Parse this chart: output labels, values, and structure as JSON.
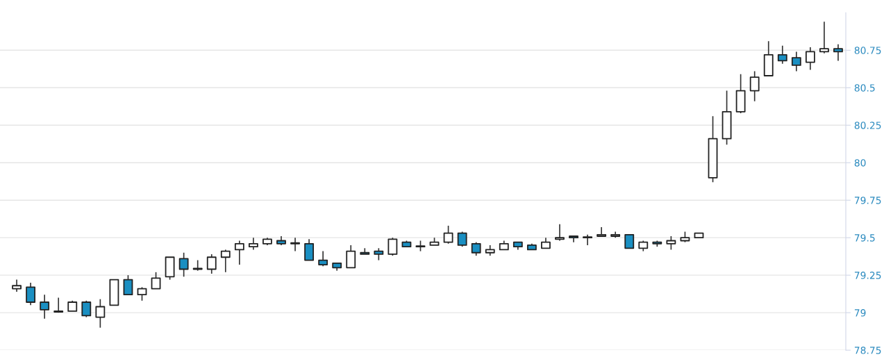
{
  "chart_data": {
    "type": "candlestick",
    "categories": [
      null,
      null,
      null,
      null,
      null,
      null,
      null,
      null,
      null,
      null,
      null,
      null,
      null,
      null,
      null,
      null,
      null,
      null,
      null,
      null,
      null,
      null,
      null,
      null,
      null,
      null,
      null,
      null,
      null,
      null,
      null,
      null,
      null,
      null,
      null,
      null,
      null,
      null,
      null,
      null,
      null,
      null,
      null,
      null,
      null,
      null,
      null,
      null,
      null,
      null,
      null,
      null,
      null,
      null,
      null,
      null,
      null,
      null,
      null,
      null
    ],
    "ohlc": [
      [
        79.16,
        79.22,
        79.14,
        79.18
      ],
      [
        79.17,
        79.2,
        79.05,
        79.07
      ],
      [
        79.07,
        79.12,
        78.96,
        79.02
      ],
      [
        79.01,
        79.1,
        79.0,
        79.005
      ],
      [
        79.01,
        79.08,
        79.01,
        79.07
      ],
      [
        79.07,
        79.08,
        78.97,
        78.98
      ],
      [
        78.97,
        79.09,
        78.9,
        79.04
      ],
      [
        79.05,
        79.22,
        79.05,
        79.22
      ],
      [
        79.22,
        79.25,
        79.12,
        79.12
      ],
      [
        79.12,
        79.17,
        79.08,
        79.16
      ],
      [
        79.16,
        79.27,
        79.16,
        79.23
      ],
      [
        79.24,
        79.37,
        79.22,
        79.37
      ],
      [
        79.36,
        79.4,
        79.24,
        79.29
      ],
      [
        79.295,
        79.35,
        79.28,
        79.29
      ],
      [
        79.29,
        79.39,
        79.26,
        79.37
      ],
      [
        79.37,
        79.42,
        79.27,
        79.41
      ],
      [
        79.42,
        79.48,
        79.32,
        79.46
      ],
      [
        79.44,
        79.5,
        79.42,
        79.46
      ],
      [
        79.46,
        79.5,
        79.45,
        79.49
      ],
      [
        79.48,
        79.51,
        79.45,
        79.46
      ],
      [
        79.465,
        79.5,
        79.41,
        79.46
      ],
      [
        79.46,
        79.49,
        79.35,
        79.35
      ],
      [
        79.35,
        79.41,
        79.31,
        79.32
      ],
      [
        79.33,
        79.33,
        79.28,
        79.3
      ],
      [
        79.3,
        79.45,
        79.3,
        79.41
      ],
      [
        79.4,
        79.43,
        79.39,
        79.39
      ],
      [
        79.41,
        79.43,
        79.35,
        79.39
      ],
      [
        79.39,
        79.5,
        79.38,
        79.49
      ],
      [
        79.47,
        79.48,
        79.44,
        79.44
      ],
      [
        79.445,
        79.48,
        79.41,
        79.44
      ],
      [
        79.45,
        79.5,
        79.45,
        79.47
      ],
      [
        79.47,
        79.58,
        79.46,
        79.53
      ],
      [
        79.53,
        79.54,
        79.44,
        79.45
      ],
      [
        79.46,
        79.47,
        79.38,
        79.4
      ],
      [
        79.4,
        79.45,
        79.38,
        79.42
      ],
      [
        79.42,
        79.48,
        79.42,
        79.46
      ],
      [
        79.47,
        79.47,
        79.42,
        79.44
      ],
      [
        79.45,
        79.46,
        79.42,
        79.42
      ],
      [
        79.43,
        79.5,
        79.43,
        79.47
      ],
      [
        79.49,
        79.59,
        79.48,
        79.5
      ],
      [
        79.51,
        79.51,
        79.47,
        79.5
      ],
      [
        79.505,
        79.52,
        79.45,
        79.5
      ],
      [
        79.51,
        79.57,
        79.51,
        79.52
      ],
      [
        79.51,
        79.54,
        79.5,
        79.52
      ],
      [
        79.52,
        79.52,
        79.43,
        79.43
      ],
      [
        79.43,
        79.48,
        79.41,
        79.47
      ],
      [
        79.47,
        79.48,
        79.44,
        79.46
      ],
      [
        79.46,
        79.51,
        79.42,
        79.48
      ],
      [
        79.48,
        79.54,
        79.47,
        79.5
      ],
      [
        79.5,
        79.53,
        79.5,
        79.53
      ],
      [
        79.9,
        80.31,
        79.87,
        80.16
      ],
      [
        80.16,
        80.48,
        80.12,
        80.34
      ],
      [
        80.34,
        80.59,
        80.33,
        80.48
      ],
      [
        80.48,
        80.61,
        80.41,
        80.57
      ],
      [
        80.58,
        80.81,
        80.58,
        80.72
      ],
      [
        80.72,
        80.78,
        80.66,
        80.68
      ],
      [
        80.7,
        80.74,
        80.61,
        80.65
      ],
      [
        80.67,
        80.77,
        80.62,
        80.74
      ],
      [
        80.74,
        80.94,
        80.73,
        80.76
      ],
      [
        80.76,
        80.79,
        80.68,
        80.74
      ]
    ],
    "colors": [
      "#ffffff",
      "#1a8fc2",
      "#1a8fc2",
      "#1a8fc2",
      "#ffffff",
      "#1a8fc2",
      "#ffffff",
      "#ffffff",
      "#1a8fc2",
      "#ffffff",
      "#ffffff",
      "#ffffff",
      "#1a8fc2",
      "#1a8fc2",
      "#ffffff",
      "#ffffff",
      "#ffffff",
      "#ffffff",
      "#ffffff",
      "#1a8fc2",
      "#1a8fc2",
      "#1a8fc2",
      "#1a8fc2",
      "#1a8fc2",
      "#ffffff",
      "#1a8fc2",
      "#1a8fc2",
      "#ffffff",
      "#1a8fc2",
      "#1a8fc2",
      "#ffffff",
      "#ffffff",
      "#1a8fc2",
      "#1a8fc2",
      "#ffffff",
      "#ffffff",
      "#1a8fc2",
      "#1a8fc2",
      "#ffffff",
      "#ffffff",
      "#1a8fc2",
      "#1a8fc2",
      "#ffffff",
      "#ffffff",
      "#1a8fc2",
      "#ffffff",
      "#1a8fc2",
      "#ffffff",
      "#ffffff",
      "#ffffff",
      "#ffffff",
      "#ffffff",
      "#ffffff",
      "#ffffff",
      "#ffffff",
      "#1a8fc2",
      "#1a8fc2",
      "#ffffff",
      "#ffffff",
      "#1a8fc2"
    ],
    "ylim": [
      78.75,
      81.0
    ],
    "yticks": [
      78.75,
      79,
      79.25,
      79.5,
      79.75,
      80,
      80.25,
      80.5,
      80.75
    ],
    "grid": "y",
    "tick_labels": "y"
  }
}
